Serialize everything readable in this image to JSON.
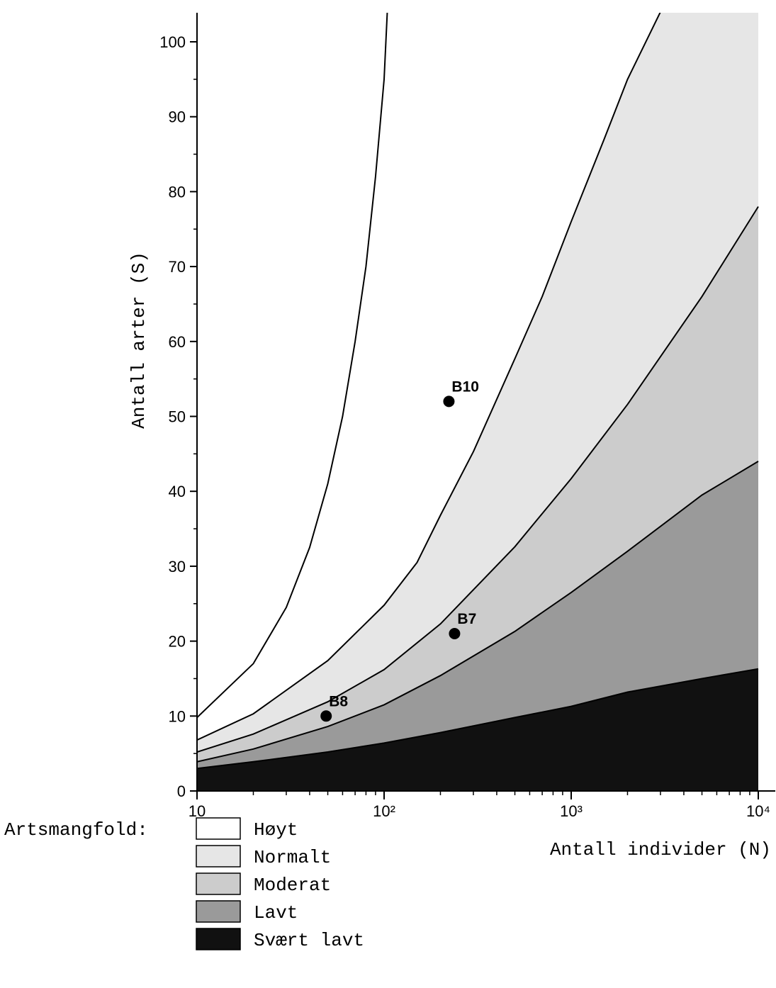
{
  "chart_data": {
    "type": "area",
    "title": "",
    "xlabel": "Antall individer (N)",
    "ylabel": "Antall arter (S)",
    "x_scale": "log",
    "xlim": [
      10,
      10000
    ],
    "ylim": [
      0,
      104
    ],
    "x_ticks": [
      {
        "value": 10,
        "label": "10"
      },
      {
        "value": 100,
        "label": "10²"
      },
      {
        "value": 1000,
        "label": "10³"
      },
      {
        "value": 10000,
        "label": "10⁴"
      }
    ],
    "y_ticks": [
      {
        "value": 0,
        "label": "0"
      },
      {
        "value": 10,
        "label": "10"
      },
      {
        "value": 20,
        "label": "20"
      },
      {
        "value": 30,
        "label": "30"
      },
      {
        "value": 40,
        "label": "40"
      },
      {
        "value": 50,
        "label": "50"
      },
      {
        "value": 60,
        "label": "60"
      },
      {
        "value": 70,
        "label": "70"
      },
      {
        "value": 80,
        "label": "80"
      },
      {
        "value": 90,
        "label": "90"
      },
      {
        "value": 100,
        "label": "100"
      }
    ],
    "boundaries": [
      {
        "id": "svaert-lavt-upper",
        "fill": "#111111",
        "x": [
          10,
          20,
          50,
          100,
          200,
          500,
          1000,
          2000,
          5000,
          10000
        ],
        "y": [
          3.0,
          3.9,
          5.2,
          6.4,
          7.8,
          9.8,
          11.3,
          13.2,
          15.0,
          16.3
        ]
      },
      {
        "id": "lavt-upper",
        "fill": "#9a9a9a",
        "x": [
          10,
          20,
          50,
          100,
          200,
          500,
          1000,
          2000,
          5000,
          10000
        ],
        "y": [
          3.9,
          5.6,
          8.6,
          11.5,
          15.4,
          21.3,
          26.5,
          32.0,
          39.5,
          44.0
        ]
      },
      {
        "id": "moderat-upper",
        "fill": "#cccccc",
        "x": [
          10,
          20,
          50,
          100,
          200,
          500,
          1000,
          2000,
          5000,
          10000
        ],
        "y": [
          5.2,
          7.6,
          11.9,
          16.2,
          22.3,
          32.6,
          41.7,
          51.6,
          66.0,
          78.0
        ]
      },
      {
        "id": "normalt-upper",
        "fill": "#e6e6e6",
        "x": [
          10,
          20,
          50,
          100,
          150,
          200,
          300,
          500,
          700,
          1000,
          1500,
          2000,
          3000
        ],
        "y": [
          6.8,
          10.3,
          17.4,
          24.8,
          30.5,
          36.8,
          45.3,
          57.7,
          66.0,
          76.0,
          87.0,
          95.0,
          104.0
        ]
      },
      {
        "id": "hoyt-curve",
        "fill": "none",
        "x": [
          10,
          20,
          30,
          40,
          50,
          60,
          70,
          80,
          90,
          100,
          104
        ],
        "y": [
          9.8,
          17.0,
          24.5,
          32.5,
          41.0,
          50.0,
          60.0,
          70.0,
          82.0,
          95.0,
          104.0
        ]
      }
    ],
    "points": [
      {
        "label": "B8",
        "x": 49,
        "y": 10
      },
      {
        "label": "B7",
        "x": 238,
        "y": 21
      },
      {
        "label": "B10",
        "x": 222,
        "y": 52
      }
    ],
    "legend": {
      "position": "bottom-left",
      "title": "Artsmangfold:",
      "entries": [
        {
          "label": "Høyt",
          "fill": "#ffffff"
        },
        {
          "label": "Normalt",
          "fill": "#e6e6e6"
        },
        {
          "label": "Moderat",
          "fill": "#cccccc"
        },
        {
          "label": "Lavt",
          "fill": "#9a9a9a"
        },
        {
          "label": "Svært lavt",
          "fill": "#111111"
        }
      ]
    }
  }
}
